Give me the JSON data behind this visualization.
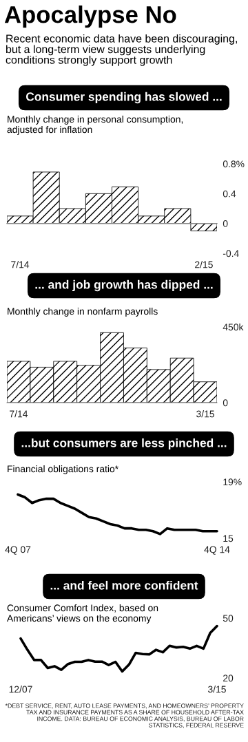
{
  "chart_data": [
    {
      "type": "other",
      "title": "Apocalypse No",
      "subtitle": "Recent economic data have been discouraging, but a long-term view suggests underlying conditions strongly support growth"
    },
    {
      "type": "bar",
      "title": "Consumer spending has slowed ...",
      "subtitle": "Monthly change in personal consumption, adjusted for inflation",
      "categories": [
        "7/14",
        null,
        null,
        null,
        null,
        null,
        null,
        "2/15"
      ],
      "values": [
        0.1,
        0.69,
        0.2,
        0.4,
        0.49,
        0.1,
        0.2,
        -0.1
      ],
      "color": "#000000",
      "ylim": [
        -0.4,
        0.8
      ],
      "yticks": [
        {
          "value": 0.8,
          "label": "0.8%"
        },
        0.4,
        0,
        -0.4
      ],
      "grid": false,
      "legend": false,
      "ref_lines": [
        {
          "axis": "y",
          "value": 0,
          "color": "#888888"
        }
      ]
    },
    {
      "type": "bar",
      "title": "... and job growth has dipped ...",
      "subtitle": "Monthly change in nonfarm payrolls",
      "categories": [
        "7/14",
        null,
        null,
        null,
        null,
        null,
        null,
        null,
        "3/15"
      ],
      "values": [
        246,
        211,
        246,
        222,
        416,
        325,
        197,
        265,
        124
      ],
      "color": "#000000",
      "ylim": [
        0,
        450
      ],
      "yticks": [
        {
          "value": 450,
          "label": "450k"
        },
        0
      ],
      "grid": false,
      "legend": false
    },
    {
      "type": "line",
      "title": "...but consumers are less pinched ...",
      "subtitle": "Financial obligations ratio*",
      "categories": [
        "4Q 07",
        null,
        null,
        null,
        null,
        null,
        null,
        null,
        null,
        null,
        null,
        null,
        null,
        null,
        null,
        null,
        null,
        null,
        null,
        null,
        null,
        null,
        null,
        null,
        null,
        null,
        null,
        null,
        "4Q 14"
      ],
      "values": [
        18.1,
        17.9,
        17.5,
        17.7,
        17.8,
        17.8,
        17.5,
        17.3,
        17.1,
        16.8,
        16.5,
        16.4,
        16.2,
        16.0,
        15.9,
        15.7,
        15.7,
        15.6,
        15.6,
        15.5,
        15.3,
        15.7,
        15.6,
        15.6,
        15.6,
        15.6,
        15.5,
        15.5,
        15.5
      ],
      "color": "#000000",
      "ylim": [
        15,
        19
      ],
      "yticks": [
        {
          "value": 19,
          "label": "19%"
        },
        15
      ],
      "grid": false,
      "legend": false,
      "marker": "none",
      "line_style": "solid"
    },
    {
      "type": "line",
      "title": "... and feel more confident",
      "subtitle": "Consumer Comfort Index, based on Americans’ views on the economy",
      "categories": [
        "12/07",
        null,
        null,
        null,
        null,
        null,
        null,
        null,
        null,
        null,
        null,
        null,
        null,
        null,
        null,
        null,
        null,
        null,
        null,
        null,
        null,
        null,
        null,
        null,
        null,
        null,
        null,
        null,
        null,
        "3/15"
      ],
      "values": [
        39.8,
        34.1,
        29.0,
        29.0,
        25.0,
        25.9,
        24.1,
        27.0,
        28.1,
        28.1,
        29.0,
        28.2,
        28.2,
        26.5,
        28.1,
        23.3,
        26.7,
        32.6,
        32.0,
        31.8,
        34.1,
        32.9,
        36.1,
        35.3,
        35.6,
        34.7,
        36.1,
        34.7,
        42.6,
        46.0
      ],
      "color": "#000000",
      "ylim": [
        20,
        50
      ],
      "yticks": [
        50,
        20
      ],
      "grid": false,
      "legend": false,
      "marker": "none",
      "line_style": "solid",
      "annotations": [
        "*DEBT SERVICE, RENT, AUTO LEASE PAYMENTS, AND HOMEOWNERS’ PROPERTY TAX AND INSURANCE PAYMENTS AS A SHARE OF HOUSEHOLD AFTER-TAX INCOME. DATA: BUREAU OF ECONOMIC ANALYSIS, BUREAU OF LABOR STATISTICS, FEDERAL RESERVE"
      ]
    }
  ]
}
